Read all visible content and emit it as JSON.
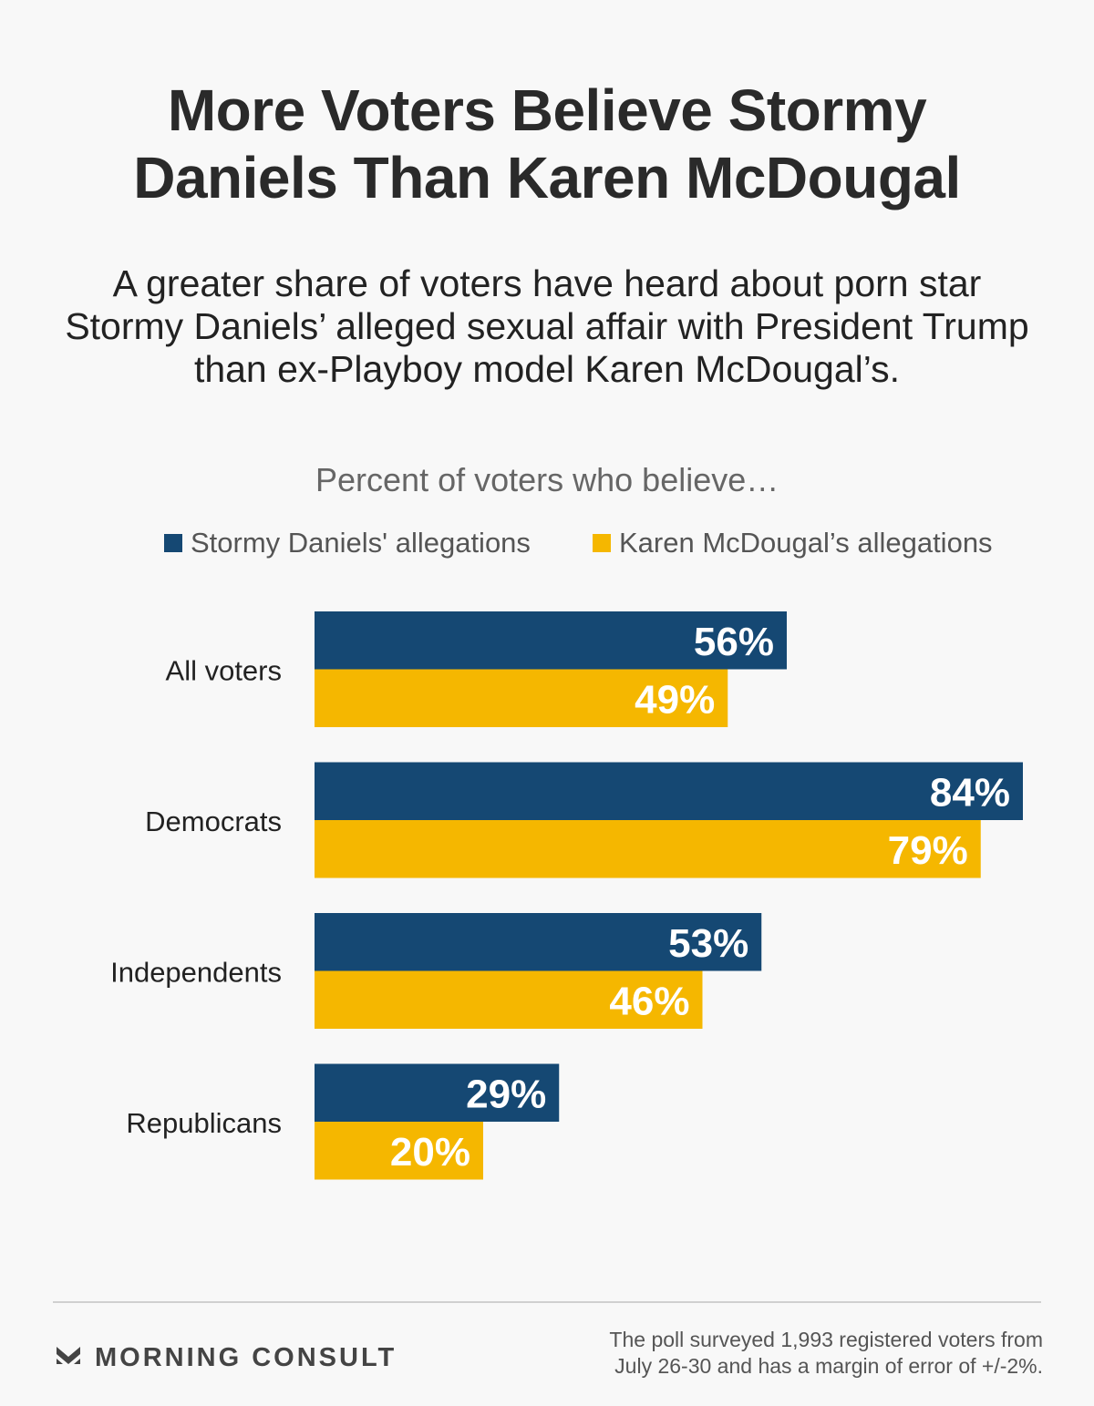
{
  "header": {
    "title_line1": "More Voters Believe Stormy",
    "title_line2": "Daniels Than Karen McDougal",
    "subtitle": "A greater share of voters have heard about porn star Stormy Daniels’ alleged sexual affair with President Trump than ex-Playboy model Karen McDougal’s."
  },
  "chart_caption": "Percent of voters who believe…",
  "colors": {
    "stormy": "#154873",
    "karen": "#f5b700",
    "label_text": "#ffffff"
  },
  "chart_data": {
    "type": "bar",
    "orientation": "horizontal",
    "title": "",
    "categories": [
      "All voters",
      "Democrats",
      "Independents",
      "Republicans"
    ],
    "series": [
      {
        "name": "Stormy Daniels' allegations",
        "values": [
          56,
          84,
          53,
          29
        ],
        "labels": [
          "56%",
          "84%",
          "53%",
          "29%"
        ]
      },
      {
        "name": "Karen McDougal’s allegations",
        "values": [
          49,
          79,
          46,
          20
        ],
        "labels": [
          "49%",
          "79%",
          "46%",
          "20%"
        ]
      }
    ],
    "xlim": [
      0,
      84
    ],
    "unit": "%",
    "grid": false,
    "legend": "top"
  },
  "footer": {
    "brand": "MORNING CONSULT",
    "logo_icon": "morning-consult-chevron-icon",
    "note_line1": "The poll surveyed 1,993 registered voters from",
    "note_line2": "July 26-30 and has a margin of error of +/-2%."
  }
}
